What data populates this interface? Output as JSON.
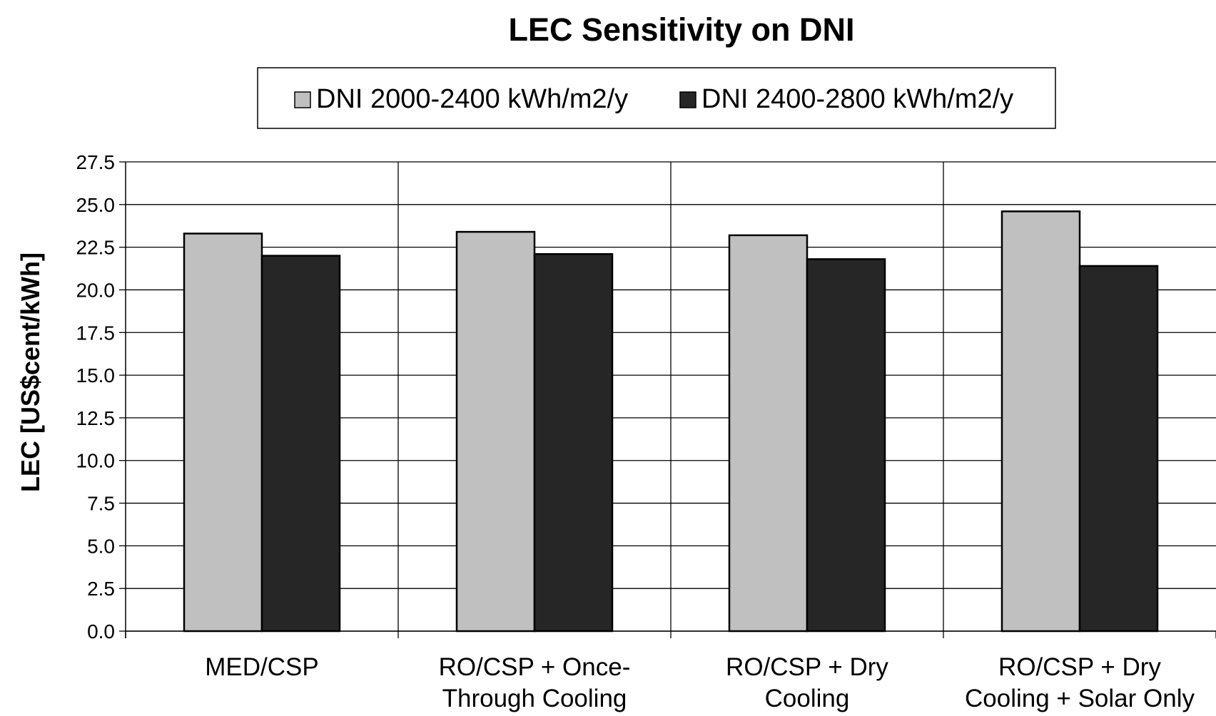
{
  "chart_data": {
    "type": "bar",
    "title": "LEC Sensitivity on DNI",
    "xlabel": "",
    "ylabel": "LEC [US$cent/kWh]",
    "ylim": [
      0,
      27.5
    ],
    "y_ticks": [
      "0.0",
      "2.5",
      "5.0",
      "7.5",
      "10.0",
      "12.5",
      "15.0",
      "17.5",
      "20.0",
      "22.5",
      "25.0",
      "27.5"
    ],
    "grid": true,
    "legend_position": "top",
    "categories": [
      [
        "MED/CSP"
      ],
      [
        "RO/CSP + Once-",
        "Through Cooling"
      ],
      [
        "RO/CSP + Dry",
        "Cooling"
      ],
      [
        "RO/CSP + Dry",
        "Cooling + Solar Only"
      ]
    ],
    "series": [
      {
        "name": "DNI 2000-2400 kWh/m2/y",
        "color": "#c0c0c0",
        "values": [
          23.3,
          23.4,
          23.2,
          24.6
        ]
      },
      {
        "name": "DNI 2400-2800 kWh/m2/y",
        "color": "#262626",
        "values": [
          22.0,
          22.1,
          21.8,
          21.4
        ]
      }
    ]
  }
}
